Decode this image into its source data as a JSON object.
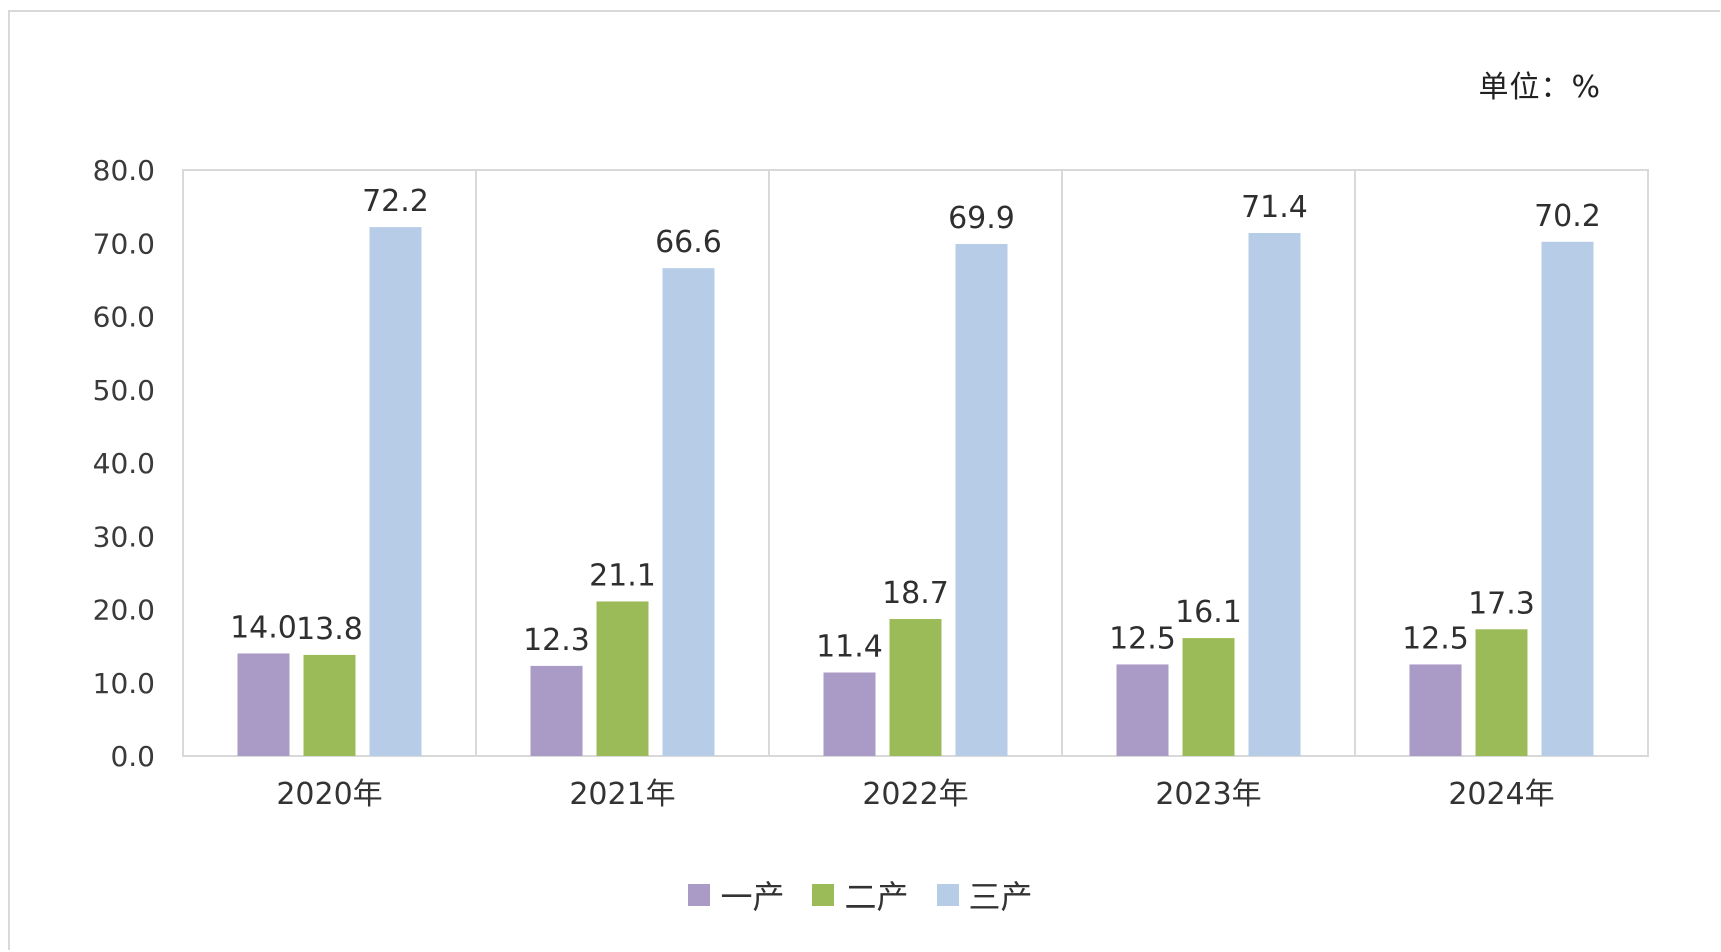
{
  "unit_label": "单位：%",
  "chart_data": {
    "type": "bar",
    "categories": [
      "2020年",
      "2021年",
      "2022年",
      "2023年",
      "2024年"
    ],
    "series": [
      {
        "name": "一产",
        "color": "#a99bc6",
        "values": [
          14.0,
          12.3,
          11.4,
          12.5,
          12.5
        ]
      },
      {
        "name": "二产",
        "color": "#9bbb59",
        "values": [
          13.8,
          21.1,
          18.7,
          16.1,
          17.3
        ]
      },
      {
        "name": "三产",
        "color": "#b7cce6",
        "values": [
          72.2,
          66.6,
          69.9,
          71.4,
          70.2
        ]
      }
    ],
    "ylim": [
      0,
      80
    ],
    "yticks": [
      "0.0",
      "10.0",
      "20.0",
      "30.0",
      "40.0",
      "50.0",
      "60.0",
      "70.0",
      "80.0"
    ],
    "grid": "vertical category separators",
    "legend": "bottom"
  }
}
